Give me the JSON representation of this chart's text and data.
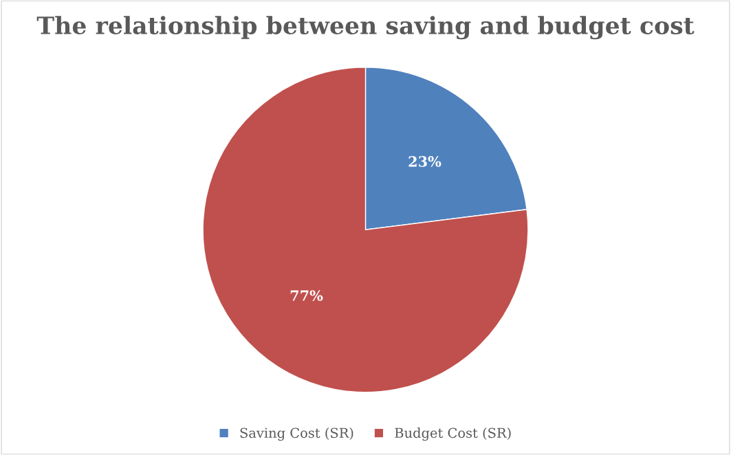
{
  "chart_data": {
    "type": "pie",
    "title": "The relationship between saving and budget cost",
    "categories": [
      "Saving Cost (SR)",
      "Budget Cost (SR)"
    ],
    "values": [
      23,
      77
    ],
    "colors": [
      "#4f81bd",
      "#c0504d"
    ],
    "value_labels": [
      "23%",
      "77%"
    ],
    "legend": "bottom"
  }
}
